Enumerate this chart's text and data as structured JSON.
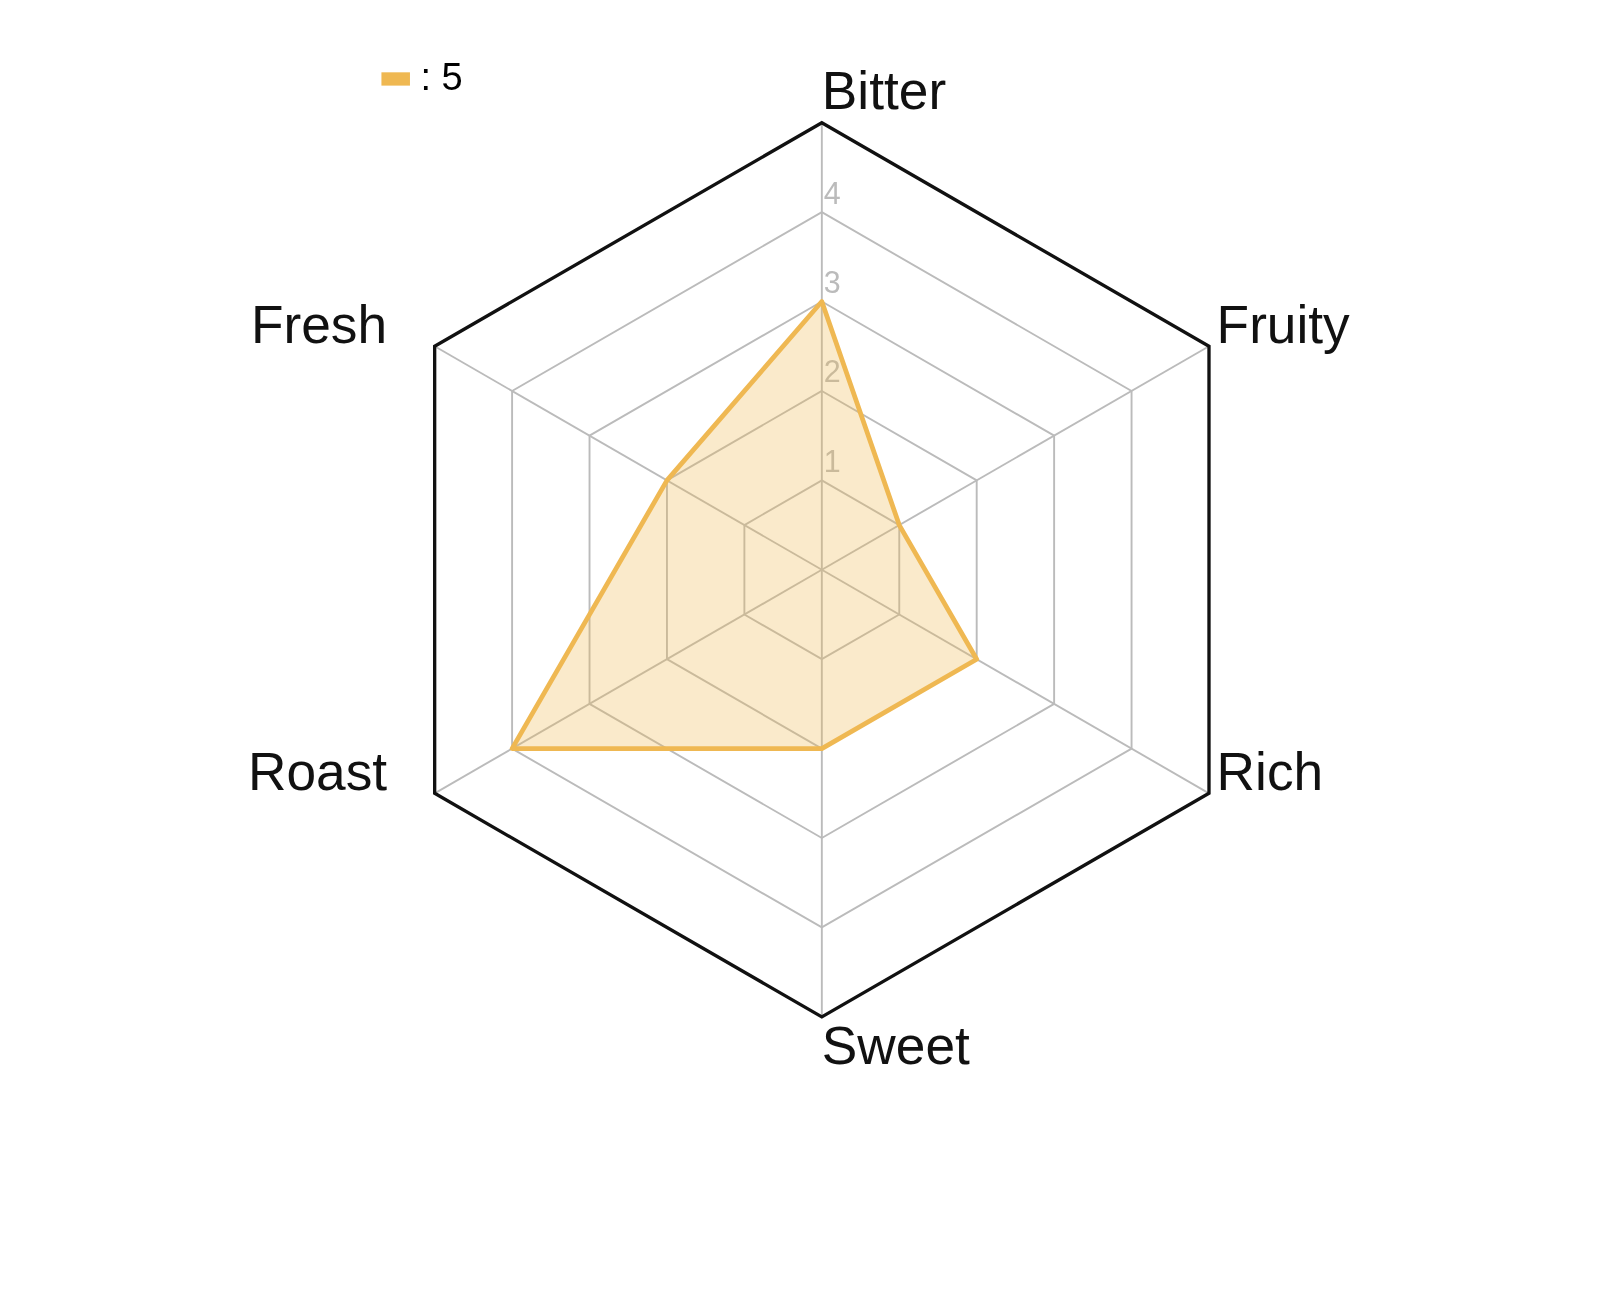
{
  "chart_data": {
    "type": "radar",
    "categories": [
      "Bitter",
      "Fruity",
      "Rich",
      "Sweet",
      "Roast",
      "Fresh"
    ],
    "series": [
      {
        "name": ": 5",
        "color": "#efb852",
        "values": [
          3,
          1,
          2,
          2,
          4,
          2
        ]
      }
    ],
    "ylim": [
      0,
      5
    ],
    "yticks": [
      1,
      2,
      3,
      4
    ],
    "legend": "top",
    "grid": true
  }
}
